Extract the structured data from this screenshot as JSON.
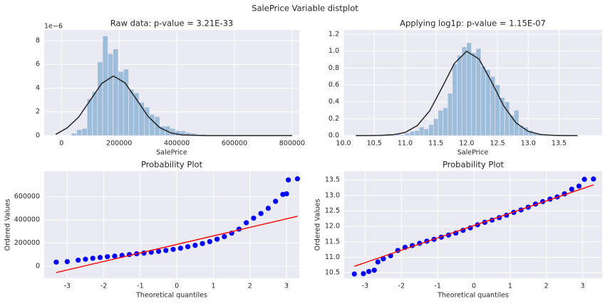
{
  "title": "SalePrice Variable distplot",
  "chart_data": [
    {
      "type": "histogram",
      "title": "Raw data: p-value = 3.21E-33",
      "xlabel": "SalePrice",
      "offset_text": "1e−6",
      "bins": [
        34900,
        52900,
        70900,
        88900,
        106900,
        124900,
        142900,
        160900,
        178900,
        196900,
        214900,
        232900,
        250900,
        268900,
        286900,
        304900,
        322900,
        340900,
        358900,
        376900,
        394900,
        412900,
        430900,
        448900,
        466900,
        484900,
        502900,
        520900,
        538900,
        556900,
        574900,
        592900,
        610900,
        628900,
        646900,
        664900,
        682900,
        700900,
        718900,
        736900,
        754900
      ],
      "values": [
        0.2,
        0.5,
        0.6,
        3.1,
        3.7,
        6.2,
        8.4,
        6.9,
        7.3,
        5.4,
        5.6,
        3.9,
        3.6,
        2.8,
        2.4,
        1.8,
        1.6,
        0.8,
        0.8,
        0.6,
        0.4,
        0.4,
        0.25,
        0.2,
        0.1,
        0.1,
        0.05,
        0.05,
        0.02,
        0.02,
        0.02,
        0,
        0,
        0.01,
        0,
        0,
        0,
        0,
        0,
        0.01
      ],
      "color": "#9dbdda",
      "fit": {
        "color": "#262626",
        "x": [
          -20000,
          20000,
          60000,
          100000,
          140000,
          180000,
          220000,
          260000,
          300000,
          340000,
          380000,
          420000,
          500000,
          800000
        ],
        "y": [
          0.1,
          0.65,
          1.57,
          2.99,
          4.4,
          5.02,
          4.45,
          3.06,
          1.63,
          0.68,
          0.22,
          0.05,
          0,
          0
        ]
      },
      "xlim": [
        -60000,
        825000
      ],
      "ylim": [
        0,
        8.9
      ],
      "xticks": [
        0,
        200000,
        400000,
        600000,
        800000
      ],
      "yticks": [
        0,
        2,
        4,
        6,
        8
      ],
      "grid": true
    },
    {
      "type": "histogram",
      "title": "Applying log1p: p-value = 1.15E-07",
      "xlabel": "SalePrice",
      "bins": [
        10.46,
        10.537,
        10.614,
        10.691,
        10.768,
        10.845,
        10.922,
        10.999,
        11.076,
        11.153,
        11.23,
        11.307,
        11.384,
        11.461,
        11.538,
        11.615,
        11.692,
        11.769,
        11.846,
        11.923,
        12.0,
        12.077,
        12.154,
        12.231,
        12.308,
        12.385,
        12.462,
        12.539,
        12.616,
        12.693,
        12.77,
        12.847,
        12.924,
        13.001,
        13.078,
        13.155,
        13.232,
        13.309,
        13.386,
        13.463,
        13.54
      ],
      "values": [
        0.01,
        0,
        0.01,
        0.02,
        0.02,
        0.02,
        0.01,
        0.03,
        0.05,
        0.06,
        0.1,
        0.08,
        0.13,
        0.2,
        0.3,
        0.33,
        0.5,
        0.85,
        0.95,
        1.05,
        1.1,
        0.98,
        1.03,
        0.82,
        0.78,
        0.7,
        0.6,
        0.45,
        0.4,
        0.24,
        0.3,
        0.12,
        0.1,
        0.06,
        0.03,
        0.02,
        0.01,
        0.01,
        0,
        0.01
      ],
      "color": "#9dbdda",
      "fit": {
        "color": "#262626",
        "x": [
          10.2,
          10.4,
          10.6,
          10.8,
          11.0,
          11.2,
          11.4,
          11.6,
          11.8,
          12.0,
          12.2,
          12.4,
          12.6,
          12.8,
          13.0,
          13.2,
          13.4,
          13.6,
          13.8
        ],
        "y": [
          0,
          0.0003,
          0.0017,
          0.009,
          0.037,
          0.119,
          0.294,
          0.568,
          0.854,
          0.998,
          0.907,
          0.642,
          0.353,
          0.151,
          0.05,
          0.013,
          0.003,
          0.0004,
          0
        ]
      },
      "xlim": [
        10.0,
        14.2
      ],
      "ylim": [
        0,
        1.25
      ],
      "xticks": [
        {
          "value": 10,
          "label": "10.0"
        },
        10.5,
        {
          "value": 11,
          "label": "11.0"
        },
        11.5,
        {
          "value": 12,
          "label": "12.0"
        },
        12.5,
        {
          "value": 13,
          "label": "13.0"
        },
        13.5
      ],
      "yticks": [
        {
          "value": 0,
          "label": "0.0"
        },
        0.2,
        0.4,
        0.6,
        0.8,
        {
          "value": 1,
          "label": "1.0"
        },
        1.2
      ],
      "grid": true
    },
    {
      "type": "probplot",
      "title": "Probability Plot",
      "xlabel": "Theoretical quantiles",
      "ylabel": "Ordered Values",
      "points": {
        "color": "#0000ff",
        "x": [
          -3.3,
          -3.0,
          -2.7,
          -2.5,
          -2.3,
          -2.1,
          -1.9,
          -1.7,
          -1.5,
          -1.3,
          -1.1,
          -0.9,
          -0.7,
          -0.5,
          -0.3,
          -0.1,
          0.1,
          0.3,
          0.5,
          0.7,
          0.9,
          1.1,
          1.3,
          1.5,
          1.7,
          1.9,
          2.1,
          2.3,
          2.5,
          2.7,
          2.9,
          3.0,
          3.05,
          3.3
        ],
        "y": [
          34900,
          39300,
          52000,
          60000,
          68000,
          75000,
          82000,
          87000,
          93000,
          100000,
          107000,
          113000,
          120000,
          128000,
          136000,
          145000,
          155000,
          168000,
          180000,
          195000,
          212000,
          233000,
          255000,
          285000,
          320000,
          375000,
          415000,
          455000,
          500000,
          560000,
          620000,
          625000,
          745000,
          755000
        ]
      },
      "fit_line": {
        "color": "#ff0000",
        "x": [
          -3.3,
          3.3
        ],
        "y": [
          -55000,
          431000
        ]
      },
      "xlim": [
        -3.63,
        3.35
      ],
      "ylim": [
        -105000,
        820000
      ],
      "xticks": [
        -3,
        -2,
        -1,
        0,
        1,
        2,
        3
      ],
      "yticks": [
        0,
        200000,
        400000,
        600000
      ],
      "grid": true
    },
    {
      "type": "probplot",
      "title": "Probability Plot",
      "xlabel": "Theoretical quantiles",
      "ylabel": "Ordered Values",
      "points": {
        "color": "#0000ff",
        "x": [
          -3.3,
          -3.05,
          -2.9,
          -2.75,
          -2.65,
          -2.5,
          -2.3,
          -2.1,
          -1.9,
          -1.7,
          -1.5,
          -1.3,
          -1.1,
          -0.9,
          -0.7,
          -0.5,
          -0.3,
          -0.1,
          0.1,
          0.3,
          0.5,
          0.7,
          0.9,
          1.1,
          1.3,
          1.5,
          1.7,
          1.9,
          2.1,
          2.3,
          2.5,
          2.7,
          2.9,
          3.05,
          3.3
        ],
        "y": [
          10.46,
          10.47,
          10.54,
          10.58,
          10.85,
          10.95,
          11.05,
          11.22,
          11.32,
          11.38,
          11.45,
          11.52,
          11.58,
          11.65,
          11.72,
          11.78,
          11.87,
          11.95,
          12.05,
          12.13,
          12.2,
          12.28,
          12.36,
          12.45,
          12.53,
          12.62,
          12.72,
          12.8,
          12.88,
          12.95,
          13.05,
          13.2,
          13.3,
          13.52,
          13.53
        ]
      },
      "fit_line": {
        "color": "#ff0000",
        "x": [
          -3.3,
          3.3
        ],
        "y": [
          10.71,
          13.34
        ]
      },
      "xlim": [
        -3.58,
        3.54
      ],
      "ylim": [
        10.32,
        13.78
      ],
      "xticks": [
        -3,
        -2,
        -1,
        0,
        1,
        2,
        3
      ],
      "yticks": [
        10.5,
        {
          "value": 11,
          "label": "11.0"
        },
        11.5,
        {
          "value": 12,
          "label": "12.0"
        },
        12.5,
        {
          "value": 13,
          "label": "13.0"
        },
        13.5
      ],
      "grid": true
    }
  ]
}
